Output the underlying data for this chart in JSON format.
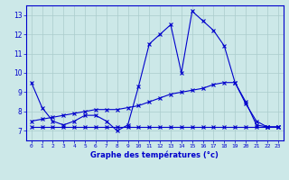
{
  "line1_x": [
    0,
    1,
    2,
    3,
    4,
    5,
    6,
    7,
    8,
    9,
    10,
    11,
    12,
    13,
    14,
    15,
    16,
    17,
    18,
    19,
    20,
    21,
    22,
    23
  ],
  "line1_y": [
    9.5,
    8.2,
    7.5,
    7.3,
    7.5,
    7.8,
    7.8,
    7.5,
    7.0,
    7.3,
    9.3,
    11.5,
    12.0,
    12.5,
    10.0,
    13.2,
    12.7,
    12.2,
    11.4,
    9.5,
    8.4,
    7.5,
    7.2,
    7.2
  ],
  "line2_x": [
    0,
    1,
    2,
    3,
    4,
    5,
    6,
    7,
    8,
    9,
    10,
    11,
    12,
    13,
    14,
    15,
    16,
    17,
    18,
    19,
    20,
    21,
    22,
    23
  ],
  "line2_y": [
    7.5,
    7.6,
    7.7,
    7.8,
    7.9,
    8.0,
    8.1,
    8.1,
    8.1,
    8.2,
    8.3,
    8.5,
    8.7,
    8.9,
    9.0,
    9.1,
    9.2,
    9.4,
    9.5,
    9.5,
    8.5,
    7.3,
    7.2,
    7.2
  ],
  "line3_x": [
    0,
    1,
    2,
    3,
    4,
    5,
    6,
    7,
    8,
    9,
    10,
    11,
    12,
    13,
    14,
    15,
    16,
    17,
    18,
    19,
    20,
    21,
    22,
    23
  ],
  "line3_y": [
    7.2,
    7.2,
    7.2,
    7.2,
    7.2,
    7.2,
    7.2,
    7.2,
    7.2,
    7.2,
    7.2,
    7.2,
    7.2,
    7.2,
    7.2,
    7.2,
    7.2,
    7.2,
    7.2,
    7.2,
    7.2,
    7.2,
    7.2,
    7.2
  ],
  "line_color": "#0000cc",
  "bg_color": "#cce8e8",
  "grid_color": "#aacccc",
  "xlabel": "Graphe des températures (°c)",
  "ylim": [
    6.5,
    13.5
  ],
  "xlim": [
    -0.5,
    23.5
  ],
  "yticks": [
    7,
    8,
    9,
    10,
    11,
    12,
    13
  ],
  "xticks": [
    0,
    1,
    2,
    3,
    4,
    5,
    6,
    7,
    8,
    9,
    10,
    11,
    12,
    13,
    14,
    15,
    16,
    17,
    18,
    19,
    20,
    21,
    22,
    23
  ]
}
